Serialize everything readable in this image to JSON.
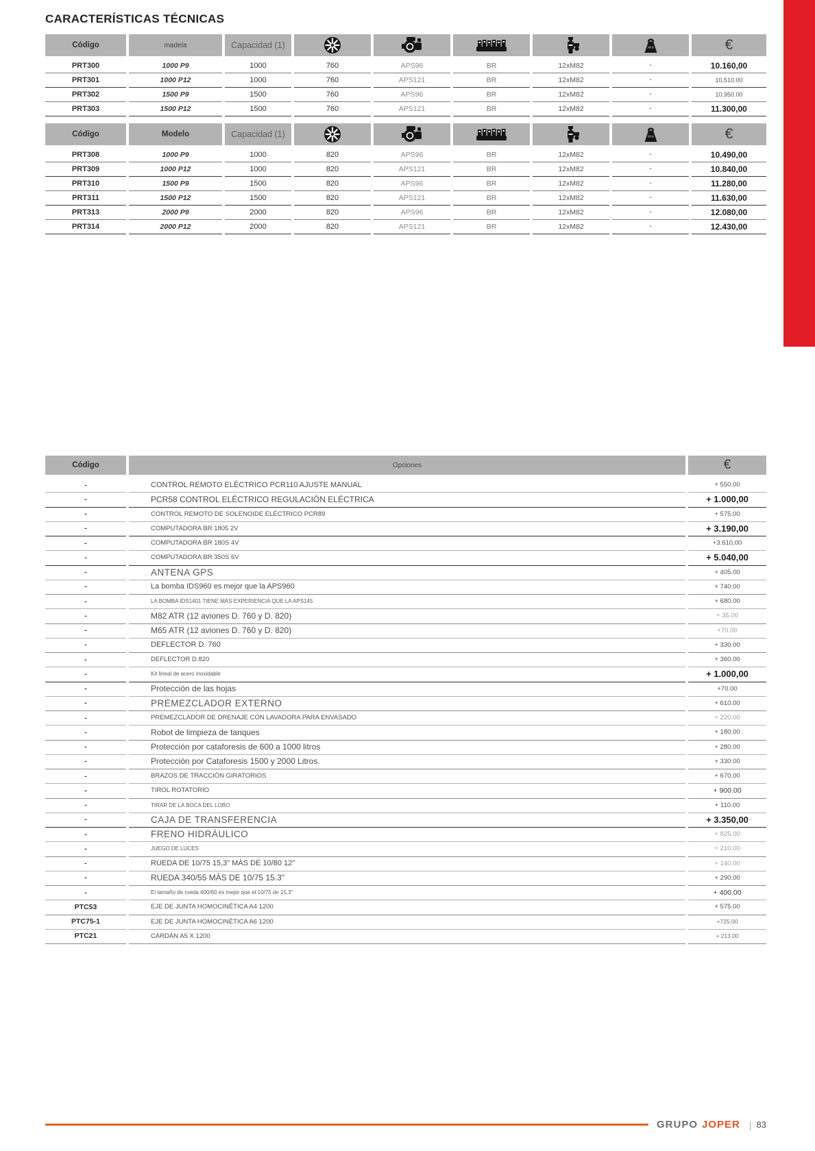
{
  "page": {
    "title": "CARACTERÍSTICAS TÉCNICAS"
  },
  "colors": {
    "accent_red_bar": "#e21d25",
    "header_gray": "#b3b3b3",
    "footer_rule_orange": "#e2641e",
    "brand_grupo_gray": "#6d6e71",
    "brand_joper_orange": "#e8501e"
  },
  "spec_tables": [
    {
      "headers": [
        {
          "type": "text",
          "label": "Código",
          "style": "code"
        },
        {
          "type": "text",
          "label": "madela",
          "style": "model-sm"
        },
        {
          "type": "text",
          "label": "Capacidad (1)",
          "style": "cap"
        },
        {
          "type": "icon",
          "name": "fan-icon"
        },
        {
          "type": "icon",
          "name": "engine-icon"
        },
        {
          "type": "icon",
          "name": "pump-bank-icon"
        },
        {
          "type": "icon",
          "name": "valve-icon"
        },
        {
          "type": "icon",
          "name": "weight-kilos-icon",
          "label": "kilos"
        },
        {
          "type": "text",
          "label": "€",
          "style": "euro"
        }
      ],
      "rows": [
        {
          "code": "PRT300",
          "model": "1000 P9",
          "capacity": "1000",
          "diameter": "760",
          "pump": "APS96",
          "computer": "BR",
          "valves": "12xM82",
          "weight": "-",
          "price": "10.160,00",
          "price_bold": true
        },
        {
          "code": "PRT301",
          "model": "1000 P12",
          "capacity": "1000",
          "diameter": "760",
          "pump": "APS121",
          "computer": "BR",
          "valves": "12xM82",
          "weight": "-",
          "price": "10,510.00",
          "price_bold": false
        },
        {
          "code": "PRT302",
          "model": "1500 P9",
          "capacity": "1500",
          "diameter": "760",
          "pump": "APS96",
          "computer": "BR",
          "valves": "12xM82",
          "weight": "-",
          "price": "10,950.00",
          "price_bold": false
        },
        {
          "code": "PRT303",
          "model": "1500 P12",
          "capacity": "1500",
          "diameter": "760",
          "pump": "APS121",
          "computer": "BR",
          "valves": "12xM82",
          "weight": "-",
          "price": "11.300,00",
          "price_bold": true
        }
      ]
    },
    {
      "headers": [
        {
          "type": "text",
          "label": "Código",
          "style": "code"
        },
        {
          "type": "text",
          "label": "Modelo",
          "style": "model"
        },
        {
          "type": "text",
          "label": "Capacidad (1)",
          "style": "cap"
        },
        {
          "type": "icon",
          "name": "fan-icon"
        },
        {
          "type": "icon",
          "name": "engine-icon"
        },
        {
          "type": "icon",
          "name": "pump-bank-icon"
        },
        {
          "type": "icon",
          "name": "valve-icon"
        },
        {
          "type": "icon",
          "name": "weight-kilos-icon",
          "label": "kilos"
        },
        {
          "type": "text",
          "label": "€",
          "style": "euro"
        }
      ],
      "rows": [
        {
          "code": "PRT308",
          "model": "1000 P9",
          "capacity": "1000",
          "diameter": "820",
          "pump": "APS96",
          "computer": "BR",
          "valves": "12xM82",
          "weight": "-",
          "price": "10.490,00",
          "price_bold": true
        },
        {
          "code": "PRT309",
          "model": "1000 P12",
          "capacity": "1000",
          "diameter": "820",
          "pump": "APS121",
          "computer": "BR",
          "valves": "12xM82",
          "weight": "-",
          "price": "10.840,00",
          "price_bold": true
        },
        {
          "code": "PRT310",
          "model": "1500 P9",
          "capacity": "1500",
          "diameter": "820",
          "pump": "APS96",
          "computer": "BR",
          "valves": "12xM82",
          "weight": "-",
          "price": "11.280,00",
          "price_bold": true
        },
        {
          "code": "PRT311",
          "model": "1500 P12",
          "capacity": "1500",
          "diameter": "820",
          "pump": "APS121",
          "computer": "BR",
          "valves": "12xM82",
          "weight": "-",
          "price": "11.630,00",
          "price_bold": true
        },
        {
          "code": "PRT313",
          "model": "2000 P9",
          "capacity": "2000",
          "diameter": "820",
          "pump": "APS96",
          "computer": "BR",
          "valves": "12xM82",
          "weight": "-",
          "price": "12.080,00",
          "price_bold": true
        },
        {
          "code": "PRT314",
          "model": "2000 P12",
          "capacity": "2000",
          "diameter": "820",
          "pump": "APS121",
          "computer": "BR",
          "valves": "12xM82",
          "weight": "-",
          "price": "12.430,00",
          "price_bold": true
        }
      ]
    }
  ],
  "options_table": {
    "headers": {
      "code": "Código",
      "options": "Opciones",
      "price": "€"
    },
    "rows": [
      {
        "code": "-",
        "label": "CONTROL REMOTO ELÉCTRICO PCR110 AJUSTE MANUAL",
        "label_size": "m",
        "price": "+ 550.00",
        "price_style": "s"
      },
      {
        "code": "-",
        "label": "PCR58 CONTROL ELÉCTRICO REGULACIÓN ELÉCTRICA",
        "label_size": "ml",
        "price": "+ 1.000,00",
        "price_style": "b"
      },
      {
        "code": "-",
        "label": "CONTROL REMOTO DE SOLENOIDE ELÉCTRICO PCR89",
        "label_size": "s",
        "price": "+ 575.00",
        "price_style": "s"
      },
      {
        "code": "-",
        "label": "COMPUTADORA BR 1805 2V",
        "label_size": "s",
        "price": "+ 3.190,00",
        "price_style": "b"
      },
      {
        "code": "-",
        "label": "COMPUTADORA BR 180S 4V",
        "label_size": "s",
        "price": "+3.610,00",
        "price_style": "s"
      },
      {
        "code": "-",
        "label": "COMPUTADORA BR 350S 6V",
        "label_size": "s",
        "price": "+ 5.040,00",
        "price_style": "b"
      },
      {
        "code": "-",
        "label": "ANTENA GPS",
        "label_size": "lg",
        "price": "+ 405.00",
        "price_style": "s"
      },
      {
        "code": "-",
        "label": "La bomba IDS960 es mejor que la APS960",
        "label_size": "m",
        "price": "+ 740.00",
        "price_style": "s"
      },
      {
        "code": "-",
        "label": "LA BOMBA IDS1401 TIENE MÁS EXPERIENCIA QUE LA APS145",
        "label_size": "xs",
        "price": "+ 680.00",
        "price_style": "s"
      },
      {
        "code": "-",
        "label": "M82 ATR (12 aviones D. 760 y D. 820)",
        "label_size": "ml",
        "price": "+ 35.00",
        "price_style": "light"
      },
      {
        "code": "-",
        "label": "M65 ATR (12 aviones D. 760 y D. 820)",
        "label_size": "ml",
        "price": "+70.00",
        "price_style": "light"
      },
      {
        "code": "-",
        "label": "DEFLECTOR D. 760",
        "label_size": "m",
        "price": "+ 330.00",
        "price_style": "s"
      },
      {
        "code": "-",
        "label": "DEFLECTOR D.820",
        "label_size": "s",
        "price": "+ 360.00",
        "price_style": "s"
      },
      {
        "code": "-",
        "label": "Kit lineal de acero inoxidable",
        "label_size": "xs",
        "price": "+ 1.000,00",
        "price_style": "b"
      },
      {
        "code": "-",
        "label": "Protección de las hojas",
        "label_size": "ml",
        "price": "+70.00",
        "price_style": "s"
      },
      {
        "code": "-",
        "label": "PREMEZCLADOR EXTERNO",
        "label_size": "lg",
        "price": "+ 610.00",
        "price_style": "s"
      },
      {
        "code": "-",
        "label": "PREMEZCLADOR DE DRENAJE CON LAVADORA PARA ENVASADO",
        "label_size": "s",
        "price": "+ 220.00",
        "price_style": "light"
      },
      {
        "code": "-",
        "label": "Robot de limpieza de tanques",
        "label_size": "ml",
        "price": "+ 180.00",
        "price_style": "s"
      },
      {
        "code": "-",
        "label": "Protección por cataforesis de 600 a 1000 litros",
        "label_size": "ml",
        "price": "+ 280.00",
        "price_style": "s"
      },
      {
        "code": "-",
        "label": "Protección por Cataforesis 1500 y 2000 Litros.",
        "label_size": "ml",
        "price": "+ 330.00",
        "price_style": "s"
      },
      {
        "code": "-",
        "label": "BRAZOS DE TRACCIÓN GIRATORIOS",
        "label_size": "s",
        "price": "+ 670.00",
        "price_style": "s"
      },
      {
        "code": "-",
        "label": "TIROL ROTATORIO",
        "label_size": "s",
        "price": "+ 900.00",
        "price_style": "m"
      },
      {
        "code": "-",
        "label": "TIRAR DE LA BOCA DEL LOBO",
        "label_size": "xs",
        "price": "+ 110.00",
        "price_style": "s"
      },
      {
        "code": "-",
        "label": "CAJA DE TRANSFERENCIA",
        "label_size": "lg",
        "price": "+ 3.350,00",
        "price_style": "b"
      },
      {
        "code": "-",
        "label": "FRENO HIDRÁULICO",
        "label_size": "lg",
        "price": "+ 825.00",
        "price_style": "light"
      },
      {
        "code": "-",
        "label": "JUEGO DE LUCES",
        "label_size": "xs",
        "price": "+ 210.00",
        "price_style": "light"
      },
      {
        "code": "-",
        "label": "RUEDA DE 10/75 15,3\" MÁS DE 10/80 12\"",
        "label_size": "m",
        "price": "+ 140.00",
        "price_style": "light"
      },
      {
        "code": "-",
        "label": "RUEDA 340/55 MÁS DE 10/75 15.3\"",
        "label_size": "ml",
        "price": "+ 290.00",
        "price_style": "s"
      },
      {
        "code": "-",
        "label": "El tamaño de rueda 400/60 es mejor que el 10/75 de 15,3\"",
        "label_size": "xs",
        "price": "+ 400.00",
        "price_style": "m"
      },
      {
        "code": "PTC53",
        "label": "EJE DE JUNTA HOMOCINÉTICA A4 1200",
        "label_size": "s",
        "price": "+ 575.00",
        "price_style": "s"
      },
      {
        "code": "PTC75-1",
        "label": "EJE DE JUNTA HOMOCINÉTICA A6 1200",
        "label_size": "s",
        "price": "+725.00",
        "price_style": "xs"
      },
      {
        "code": "PTC21",
        "label": "CARDÁN A5 X 1200",
        "label_size": "s",
        "price": "+ 213.00",
        "price_style": "xs"
      }
    ]
  },
  "footer": {
    "grupo": "GRUPO",
    "joper": "JOPER",
    "separator": "|",
    "page_number": "83"
  }
}
